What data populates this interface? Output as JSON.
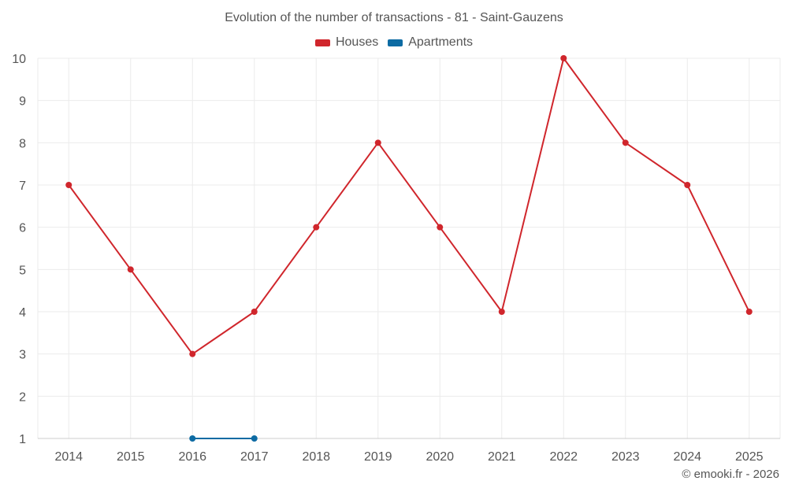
{
  "chart_data": {
    "type": "line",
    "title": "Evolution of the number of transactions - 81 - Saint-Gauzens",
    "categories": [
      "2014",
      "2015",
      "2016",
      "2017",
      "2018",
      "2019",
      "2020",
      "2021",
      "2022",
      "2023",
      "2024",
      "2025"
    ],
    "series": [
      {
        "name": "Houses",
        "color": "#d0262c",
        "values": [
          7,
          5,
          3,
          4,
          6,
          8,
          6,
          4,
          10,
          8,
          7,
          4
        ]
      },
      {
        "name": "Apartments",
        "color": "#0d6ba3",
        "values": [
          null,
          null,
          1,
          1,
          null,
          null,
          null,
          null,
          null,
          null,
          null,
          null
        ]
      }
    ],
    "ylim": [
      1,
      10
    ],
    "yticks": [
      1,
      2,
      3,
      4,
      5,
      6,
      7,
      8,
      9,
      10
    ],
    "xlabel": "",
    "ylabel": "",
    "grid": true,
    "legend": "top-center"
  },
  "credit": "© emooki.fr - 2026"
}
